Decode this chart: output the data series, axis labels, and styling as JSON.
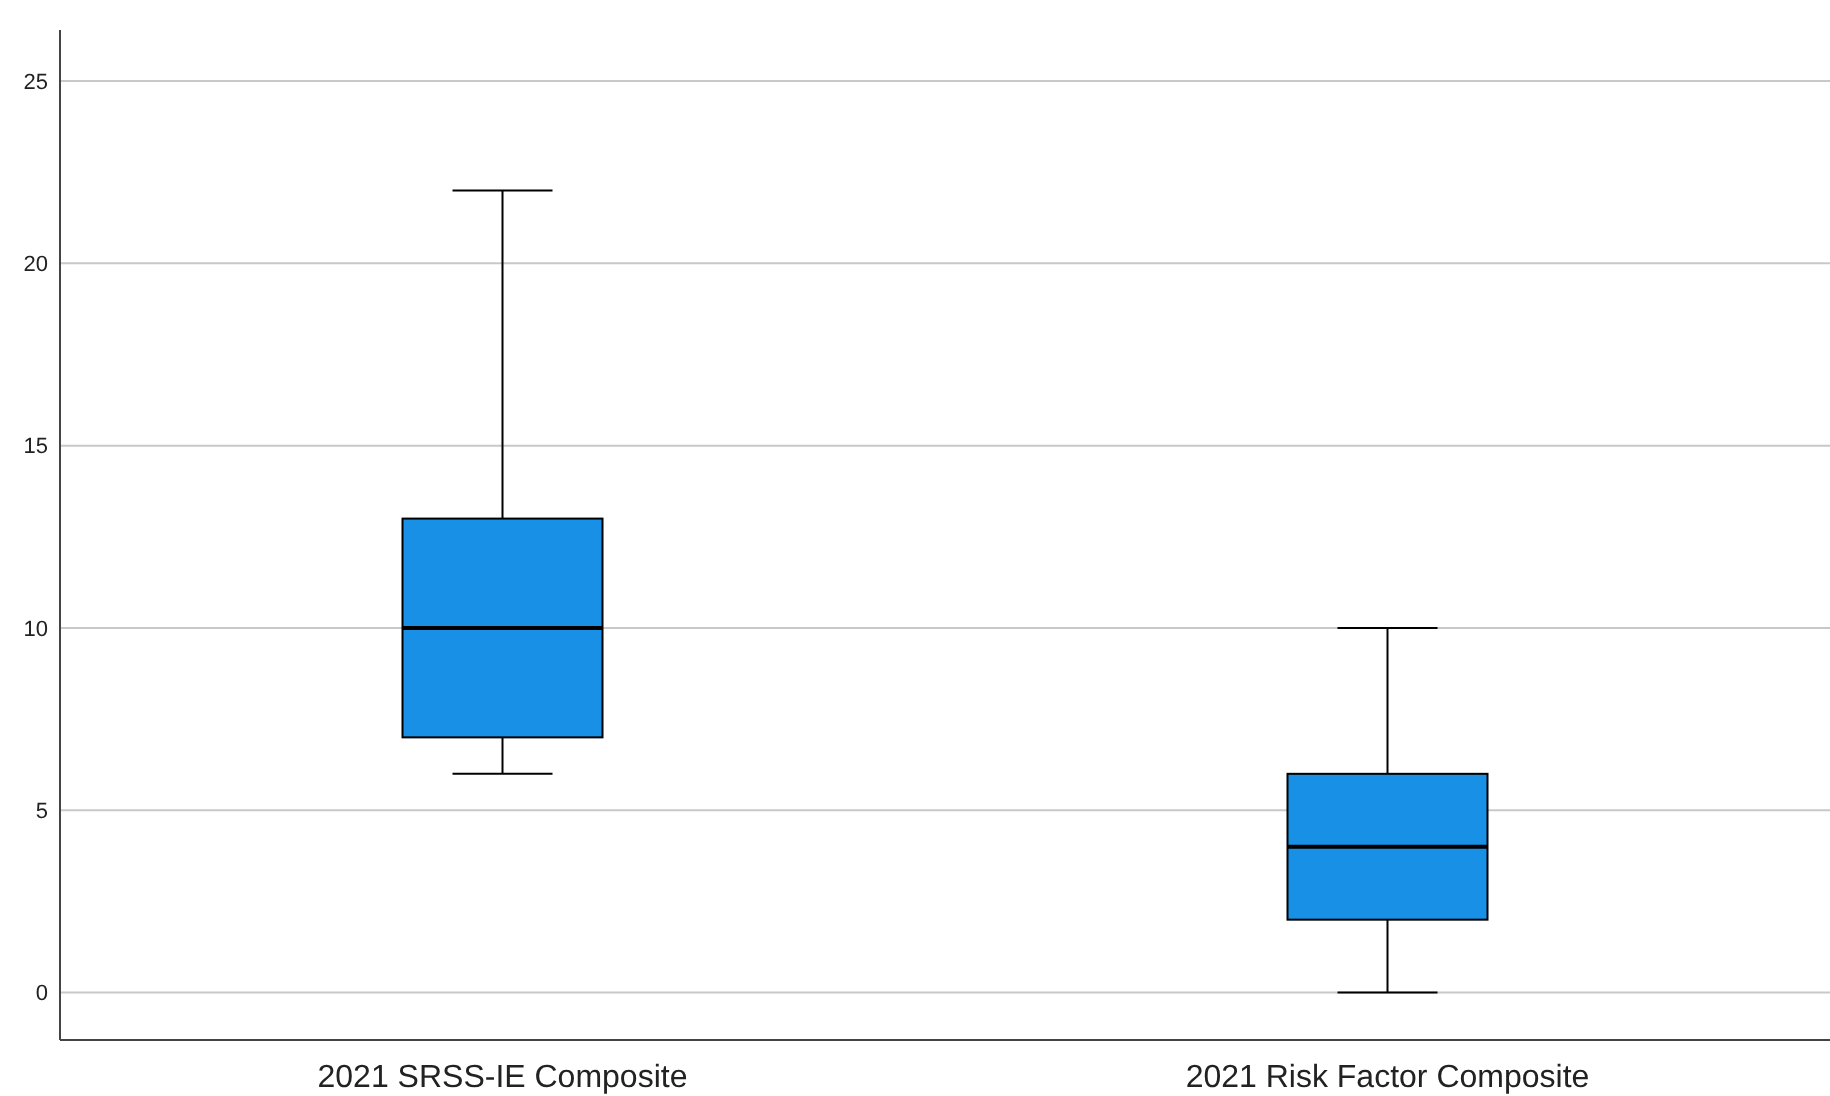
{
  "chart_data": {
    "type": "box",
    "categories": [
      "2021 SRSS-IE Composite",
      "2021 Risk Factor Composite"
    ],
    "boxes": [
      {
        "low": 6,
        "q1": 7,
        "median": 10,
        "q3": 13,
        "high": 22
      },
      {
        "low": 0,
        "q1": 2,
        "median": 4,
        "q3": 6,
        "high": 10
      }
    ],
    "color": "#1790e6",
    "ylim": [
      -1.3,
      26.4
    ],
    "yticks": [
      0,
      5,
      10,
      15,
      20,
      25
    ],
    "grid": "y"
  }
}
